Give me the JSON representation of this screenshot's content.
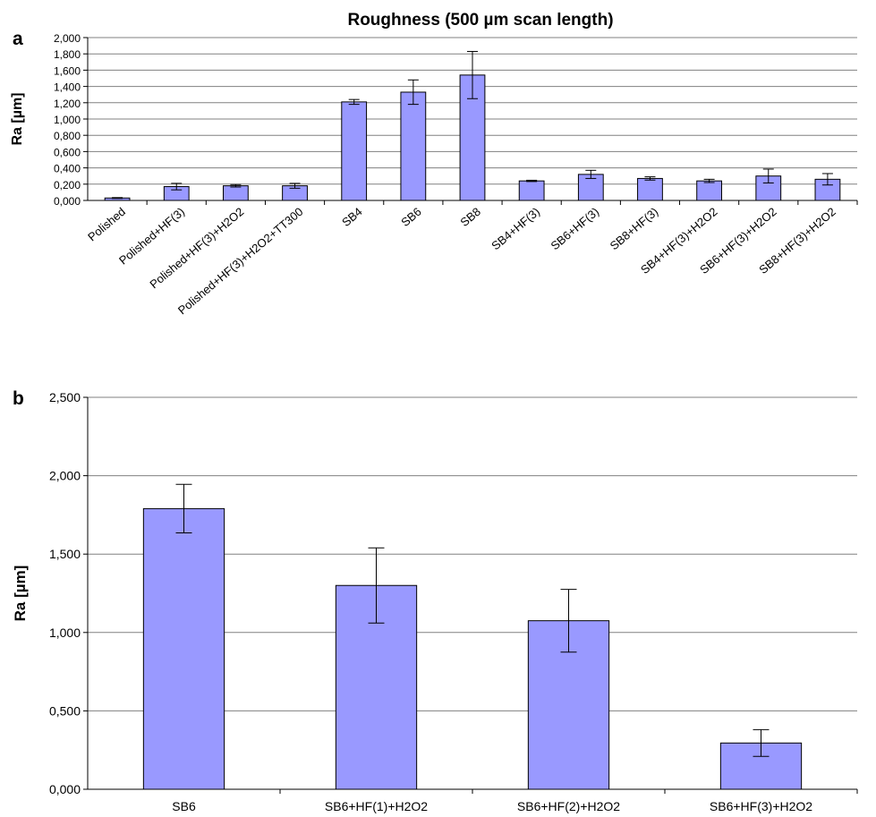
{
  "colors": {
    "bar_fill": "#9999ff",
    "bar_stroke": "#000000",
    "grid": "#808080",
    "axis": "#000000"
  },
  "chart_data": [
    {
      "panel_label": "a",
      "type": "bar",
      "title": "Roughness (500 µm scan length)",
      "ylabel": "Ra [µm]",
      "xlabel": "",
      "ylim": [
        0,
        2.0
      ],
      "yticks": [
        0,
        0.2,
        0.4,
        0.6,
        0.8,
        1.0,
        1.2,
        1.4,
        1.6,
        1.8,
        2.0
      ],
      "ytick_labels": [
        "0,000",
        "0,200",
        "0,400",
        "0,600",
        "0,800",
        "1,000",
        "1,200",
        "1,400",
        "1,600",
        "1,800",
        "2,000"
      ],
      "grid": true,
      "categories": [
        "Polished",
        "Polished+HF(3)",
        "Polished+HF(3)+H2O2",
        "Polished+HF(3)+H2O2+TT300",
        "SB4",
        "SB6",
        "SB8",
        "SB4+HF(3)",
        "SB6+HF(3)",
        "SB8+HF(3)",
        "SB4+HF(3)+H2O2",
        "SB6+HF(3)+H2O2",
        "SB8+HF(3)+H2O2"
      ],
      "values": [
        0.03,
        0.17,
        0.18,
        0.18,
        1.21,
        1.33,
        1.54,
        0.24,
        0.32,
        0.27,
        0.24,
        0.3,
        0.26
      ],
      "errors": [
        0.005,
        0.04,
        0.015,
        0.03,
        0.03,
        0.15,
        0.29,
        0.008,
        0.05,
        0.02,
        0.02,
        0.085,
        0.07
      ]
    },
    {
      "panel_label": "b",
      "type": "bar",
      "title": "",
      "ylabel": "Ra [µm]",
      "xlabel": "",
      "ylim": [
        0,
        2.5
      ],
      "yticks": [
        0,
        0.5,
        1.0,
        1.5,
        2.0,
        2.5
      ],
      "ytick_labels": [
        "0,000",
        "0,500",
        "1,000",
        "1,500",
        "2,000",
        "2,500"
      ],
      "grid": true,
      "categories": [
        "SB6",
        "SB6+HF(1)+H2O2",
        "SB6+HF(2)+H2O2",
        "SB6+HF(3)+H2O2"
      ],
      "values": [
        1.79,
        1.3,
        1.075,
        0.295
      ],
      "errors": [
        0.155,
        0.24,
        0.2,
        0.085
      ]
    }
  ]
}
